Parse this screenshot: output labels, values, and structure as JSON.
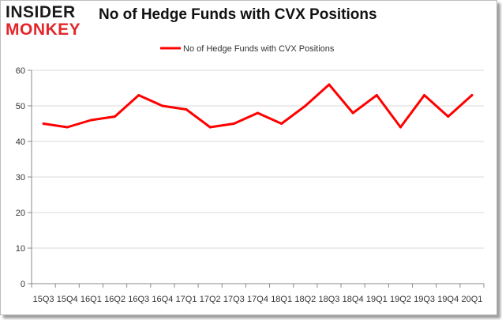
{
  "logo": {
    "line1": "INSIDER",
    "line2": "MONKEY"
  },
  "chart_data": {
    "type": "line",
    "title": "No of Hedge Funds with CVX Positions",
    "xlabel": "",
    "ylabel": "",
    "categories": [
      "15Q3",
      "15Q4",
      "16Q1",
      "16Q2",
      "16Q3",
      "16Q4",
      "17Q1",
      "17Q2",
      "17Q3",
      "17Q4",
      "18Q1",
      "18Q2",
      "18Q3",
      "18Q4",
      "19Q1",
      "19Q2",
      "19Q3",
      "19Q4",
      "20Q1"
    ],
    "series": [
      {
        "name": "No of Hedge Funds with CVX Positions",
        "color": "#ff0000",
        "values": [
          45,
          44,
          46,
          47,
          53,
          50,
          49,
          44,
          45,
          48,
          45,
          50,
          56,
          48,
          53,
          44,
          53,
          47,
          53
        ]
      }
    ],
    "ylim": [
      0,
      60
    ],
    "yticks": [
      0,
      10,
      20,
      30,
      40,
      50,
      60
    ],
    "grid": true,
    "legend": "top-center"
  }
}
